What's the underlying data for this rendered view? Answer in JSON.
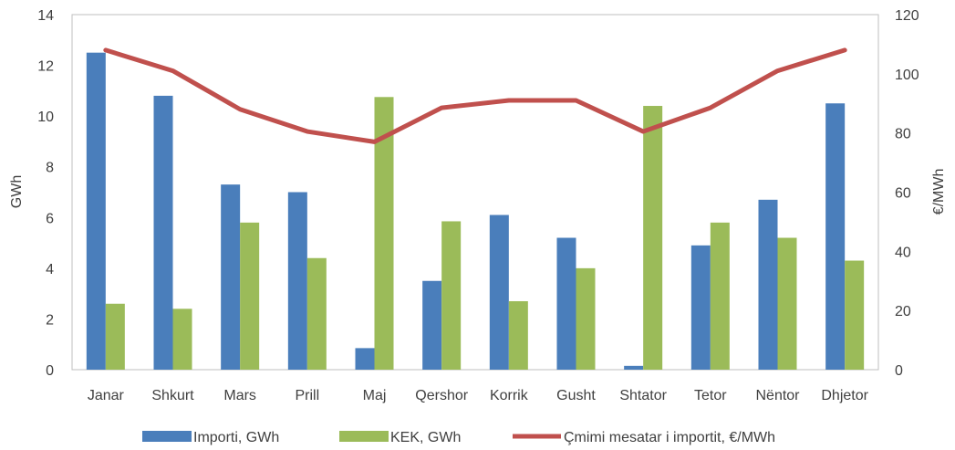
{
  "chart_data": {
    "type": "bar",
    "categories": [
      "Janar",
      "Shkurt",
      "Mars",
      "Prill",
      "Maj",
      "Qershor",
      "Korrik",
      "Gusht",
      "Shtator",
      "Tetor",
      "Nëntor",
      "Dhjetor"
    ],
    "series": [
      {
        "name": "Importi, GWh",
        "type": "bar",
        "axis": "left",
        "color": "#4a7ebb",
        "values": [
          12.5,
          10.8,
          7.3,
          7.0,
          0.85,
          3.5,
          6.1,
          5.2,
          0.15,
          4.9,
          6.7,
          10.5
        ]
      },
      {
        "name": "KEK, GWh",
        "type": "bar",
        "axis": "left",
        "color": "#9bbb59",
        "values": [
          2.6,
          2.4,
          5.8,
          4.4,
          10.75,
          5.85,
          2.7,
          4.0,
          10.4,
          5.8,
          5.2,
          4.3
        ]
      },
      {
        "name": "Çmimi mesatar i importit, €/MWh",
        "type": "line",
        "axis": "right",
        "color": "#c0504d",
        "values": [
          108,
          101,
          88,
          80.5,
          77,
          88.5,
          91,
          91,
          80.5,
          88.5,
          101,
          108
        ]
      }
    ],
    "ylabel_left": "GWh",
    "ylabel_right": "€/MWh",
    "ylim_left": [
      0,
      14
    ],
    "ylim_right": [
      0,
      120
    ],
    "yticks_left": [
      "0",
      "2",
      "4",
      "6",
      "8",
      "10",
      "12",
      "14"
    ],
    "yticks_right": [
      "0",
      "20",
      "40",
      "60",
      "80",
      "100",
      "120"
    ],
    "grid": false,
    "legend_position": "bottom"
  }
}
